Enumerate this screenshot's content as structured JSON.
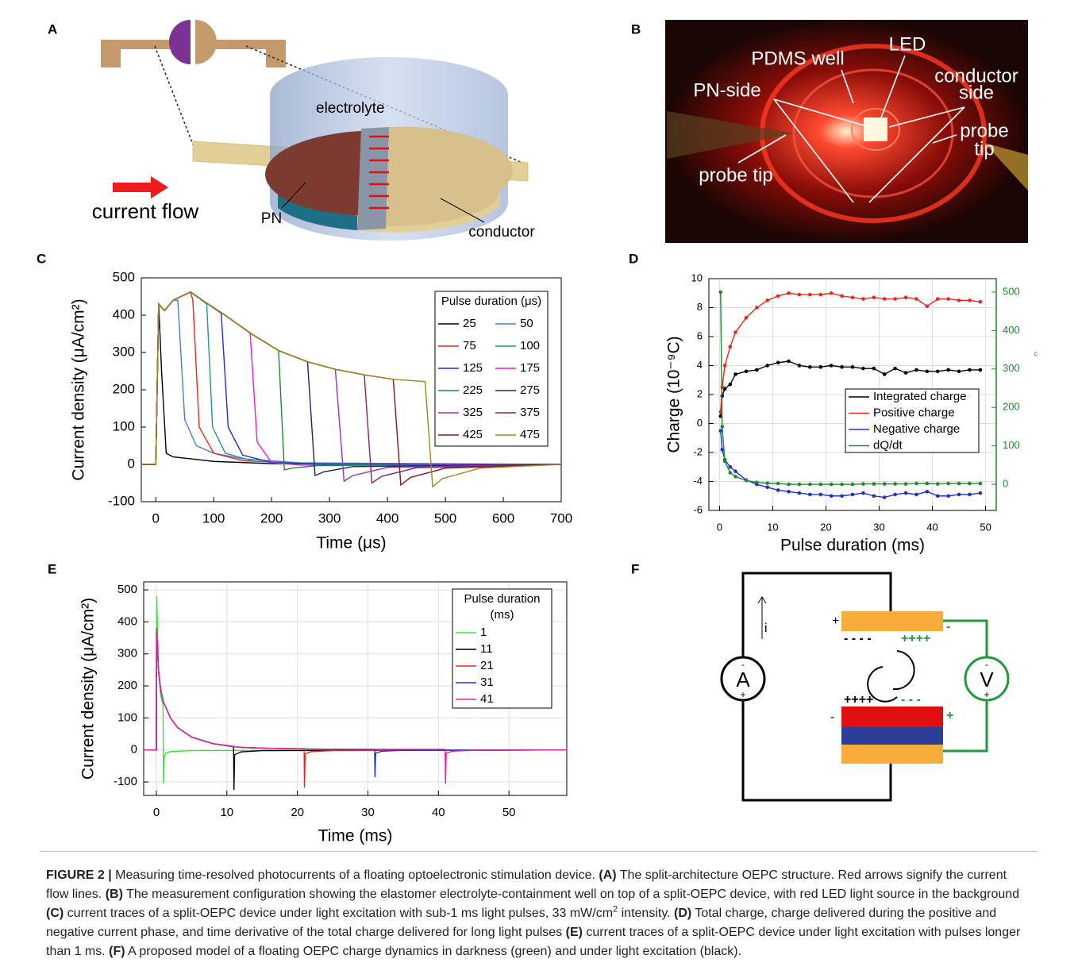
{
  "panel_a": {
    "label": "A",
    "electrolyte": "electrolyte",
    "current_flow": "current flow",
    "pn": "PN",
    "conductor": "conductor"
  },
  "panel_b": {
    "label": "B",
    "led": "LED",
    "pdms_well": "PDMS well",
    "pn_side": "PN-side",
    "conductor_side": [
      "conductor",
      "side"
    ],
    "probe_tip_right": [
      "probe",
      "tip"
    ],
    "probe_tip_left": "probe tip"
  },
  "chart_data": [
    {
      "type": "line",
      "panel": "C",
      "x_label": "Time (μs)",
      "y_label": "Current density (μA/cm²)",
      "xlim": [
        -25,
        700
      ],
      "xticks": [
        0,
        100,
        200,
        300,
        400,
        500,
        600,
        700
      ],
      "ylim": [
        -100,
        500
      ],
      "yticks": [
        -100,
        0,
        100,
        200,
        300,
        400,
        500
      ],
      "grid": false,
      "legend_title": [
        "Pulse duration (μs)"
      ],
      "legend_corner": "upper-right",
      "series": [
        {
          "name": "25",
          "color": "#000000",
          "x": [
            -25,
            0,
            5,
            10,
            18,
            30,
            60,
            100,
            200,
            700
          ],
          "values": [
            0,
            0,
            430,
            250,
            30,
            20,
            15,
            8,
            2,
            0
          ]
        },
        {
          "name": "50",
          "color": "#4b7bd1",
          "x": [
            -25,
            0,
            5,
            15,
            30,
            38,
            50,
            70,
            100,
            150,
            250,
            700
          ],
          "values": [
            0,
            0,
            430,
            412,
            440,
            440,
            120,
            50,
            30,
            15,
            4,
            0
          ]
        },
        {
          "name": "75",
          "color": "#e8281f",
          "x": [
            -25,
            0,
            5,
            15,
            30,
            60,
            64,
            75,
            100,
            150,
            250,
            700
          ],
          "values": [
            0,
            0,
            430,
            412,
            440,
            462,
            440,
            100,
            30,
            10,
            2,
            0
          ]
        },
        {
          "name": "100",
          "color": "#1a9a8a",
          "x": [
            -25,
            0,
            5,
            15,
            30,
            60,
            88,
            98,
            120,
            170,
            300,
            700
          ],
          "values": [
            0,
            0,
            430,
            412,
            440,
            462,
            430,
            100,
            30,
            8,
            1,
            0
          ]
        },
        {
          "name": "125",
          "color": "#1f2fd6",
          "x": [
            -25,
            0,
            5,
            15,
            30,
            60,
            90,
            113,
            125,
            150,
            200,
            300,
            700
          ],
          "values": [
            0,
            0,
            430,
            412,
            440,
            462,
            430,
            405,
            100,
            25,
            5,
            0,
            0
          ]
        },
        {
          "name": "175",
          "color": "#e31ee0",
          "x": [
            -25,
            0,
            5,
            15,
            30,
            60,
            90,
            115,
            163,
            175,
            200,
            250,
            700
          ],
          "values": [
            0,
            0,
            430,
            412,
            440,
            462,
            430,
            405,
            352,
            60,
            5,
            -2,
            0
          ]
        },
        {
          "name": "225",
          "color": "#1f8a2b",
          "x": [
            -25,
            0,
            5,
            15,
            30,
            60,
            90,
            115,
            165,
            212,
            222,
            235,
            280,
            700
          ],
          "values": [
            0,
            0,
            430,
            412,
            440,
            462,
            430,
            405,
            350,
            305,
            -15,
            -10,
            -3,
            0
          ]
        },
        {
          "name": "275",
          "color": "#1a2370",
          "x": [
            -25,
            0,
            5,
            15,
            30,
            60,
            90,
            115,
            165,
            212,
            262,
            275,
            290,
            340,
            700
          ],
          "values": [
            0,
            0,
            430,
            412,
            440,
            462,
            430,
            405,
            350,
            305,
            275,
            -30,
            -20,
            -6,
            0
          ]
        },
        {
          "name": "325",
          "color": "#9d2fc9",
          "x": [
            -25,
            0,
            5,
            15,
            30,
            60,
            90,
            115,
            165,
            212,
            262,
            310,
            325,
            340,
            400,
            700
          ],
          "values": [
            0,
            0,
            430,
            412,
            440,
            462,
            430,
            405,
            350,
            305,
            275,
            255,
            -45,
            -30,
            -8,
            0
          ]
        },
        {
          "name": "375",
          "color": "#8a1e6e",
          "x": [
            -25,
            0,
            5,
            15,
            30,
            60,
            90,
            115,
            165,
            212,
            262,
            310,
            360,
            373,
            390,
            450,
            700
          ],
          "values": [
            0,
            0,
            430,
            412,
            440,
            462,
            430,
            405,
            350,
            305,
            275,
            255,
            240,
            -50,
            -32,
            -9,
            0
          ]
        },
        {
          "name": "425",
          "color": "#8b1717",
          "x": [
            -25,
            0,
            5,
            15,
            30,
            60,
            90,
            115,
            165,
            212,
            262,
            310,
            360,
            410,
            423,
            440,
            500,
            700
          ],
          "values": [
            0,
            0,
            430,
            412,
            440,
            462,
            430,
            405,
            350,
            305,
            275,
            255,
            240,
            228,
            -55,
            -35,
            -10,
            0
          ]
        },
        {
          "name": "475",
          "color": "#9b8a15",
          "x": [
            -25,
            0,
            5,
            15,
            30,
            60,
            90,
            115,
            165,
            212,
            262,
            310,
            360,
            410,
            465,
            478,
            495,
            560,
            700
          ],
          "values": [
            0,
            0,
            430,
            412,
            440,
            462,
            430,
            405,
            350,
            305,
            275,
            255,
            240,
            228,
            222,
            -60,
            -38,
            -10,
            0
          ]
        }
      ]
    },
    {
      "type": "line",
      "panel": "D",
      "x_label": "Pulse duration (ms)",
      "y_label": "Charge (10⁻⁹C)",
      "y2_label": "c",
      "xlim": [
        -2,
        52
      ],
      "xticks": [
        0,
        10,
        20,
        30,
        40,
        50
      ],
      "ylim": [
        -6,
        10
      ],
      "yticks": [
        -6,
        -4,
        -2,
        0,
        2,
        4,
        6,
        8,
        10
      ],
      "y2lim": [
        -68,
        535
      ],
      "y2ticks": [
        0,
        100,
        200,
        300,
        400,
        500
      ],
      "y2_color": "#1f8a2b",
      "grid": true,
      "markers": true,
      "legend_corner": "lower-right",
      "series": [
        {
          "name": "Integrated charge",
          "color": "#000000",
          "x": [
            0.2,
            0.5,
            1,
            2,
            3,
            5,
            7,
            9,
            11,
            13,
            15,
            17,
            19,
            21,
            23,
            25,
            27,
            29,
            31,
            33,
            35,
            37,
            39,
            41,
            43,
            45,
            47,
            49
          ],
          "values": [
            0.5,
            1.9,
            2.4,
            2.7,
            3.4,
            3.6,
            3.7,
            4.0,
            4.2,
            4.3,
            4.0,
            3.9,
            3.9,
            4.0,
            3.9,
            3.9,
            3.8,
            3.8,
            3.4,
            3.8,
            3.5,
            3.7,
            3.6,
            3.6,
            3.7,
            3.6,
            3.7,
            3.7
          ]
        },
        {
          "name": "Positive charge",
          "color": "#e8281f",
          "x": [
            0.2,
            0.5,
            1,
            2,
            3,
            5,
            7,
            9,
            11,
            13,
            15,
            17,
            19,
            21,
            23,
            25,
            27,
            29,
            31,
            33,
            35,
            37,
            39,
            41,
            43,
            45,
            47,
            49
          ],
          "values": [
            0.8,
            2.5,
            4.0,
            5.3,
            6.3,
            7.3,
            8.0,
            8.5,
            8.8,
            9.0,
            8.9,
            8.9,
            8.9,
            9.0,
            8.8,
            8.7,
            8.6,
            8.7,
            8.6,
            8.6,
            8.7,
            8.6,
            8.1,
            8.6,
            8.6,
            8.5,
            8.5,
            8.4
          ]
        },
        {
          "name": "Negative charge",
          "color": "#1f2fd6",
          "x": [
            0.2,
            0.5,
            1,
            2,
            3,
            5,
            7,
            9,
            11,
            13,
            15,
            17,
            19,
            21,
            23,
            25,
            27,
            29,
            31,
            33,
            35,
            37,
            39,
            41,
            43,
            45,
            47,
            49
          ],
          "values": [
            -0.5,
            -1.8,
            -2.5,
            -3.0,
            -3.3,
            -3.9,
            -4.2,
            -4.4,
            -4.6,
            -4.7,
            -4.8,
            -4.9,
            -4.9,
            -5.0,
            -5.0,
            -4.9,
            -4.8,
            -5.0,
            -5.1,
            -4.9,
            -4.8,
            -4.9,
            -4.7,
            -5.0,
            -5.0,
            -4.9,
            -4.9,
            -4.8
          ]
        },
        {
          "name": "dQ/dt",
          "color": "#1f8a2b",
          "axis": "y2",
          "x": [
            0.2,
            0.5,
            1,
            2,
            3,
            5,
            7,
            9,
            11,
            13,
            15,
            17,
            19,
            21,
            23,
            25,
            27,
            29,
            31,
            33,
            35,
            37,
            39,
            41,
            43,
            45,
            47,
            49
          ],
          "values": [
            500,
            150,
            60,
            30,
            20,
            10,
            5,
            3,
            2,
            0,
            0,
            0,
            0,
            0,
            0,
            0,
            1,
            1,
            1,
            1,
            1,
            2,
            2,
            1,
            2,
            2,
            2,
            2
          ]
        }
      ]
    },
    {
      "type": "line",
      "panel": "E",
      "x_label": "Time (ms)",
      "y_label": "Current density (μA/cm²)",
      "xlim": [
        -1.8,
        58.2
      ],
      "xticks": [
        0,
        10,
        20,
        30,
        40,
        50
      ],
      "ylim": [
        -142,
        525
      ],
      "yticks": [
        -100,
        0,
        100,
        200,
        300,
        400,
        500
      ],
      "grid": true,
      "legend_title": [
        "Pulse duration",
        "(ms)"
      ],
      "legend_corner": "upper-right",
      "series": [
        {
          "name": "1",
          "color": "#33e633",
          "x": [
            -1.8,
            0,
            0.05,
            0.3,
            0.6,
            0.95,
            1,
            1.05,
            1.3,
            2,
            5,
            58.2
          ],
          "values": [
            0,
            0,
            480,
            250,
            170,
            140,
            -105,
            -30,
            -10,
            -5,
            -2,
            0
          ]
        },
        {
          "name": "11",
          "color": "#000000",
          "x": [
            -1.8,
            0,
            0.02,
            0.3,
            0.6,
            1,
            2,
            3,
            5,
            8,
            10.95,
            11,
            11.1,
            12,
            15,
            58.2
          ],
          "values": [
            0,
            0,
            380,
            250,
            190,
            150,
            100,
            70,
            40,
            20,
            10,
            -125,
            -15,
            -6,
            -2,
            0
          ]
        },
        {
          "name": "21",
          "color": "#e8281f",
          "x": [
            -1.8,
            0,
            0.02,
            0.3,
            0.6,
            1,
            2,
            3,
            5,
            8,
            12,
            16,
            20.95,
            21,
            21.1,
            22,
            25,
            58.2
          ],
          "values": [
            0,
            0,
            380,
            250,
            190,
            150,
            100,
            70,
            40,
            20,
            8,
            5,
            4,
            -118,
            -12,
            -5,
            -2,
            0
          ]
        },
        {
          "name": "31",
          "color": "#1f2fd6",
          "x": [
            -1.8,
            0,
            0.02,
            0.3,
            0.6,
            1,
            2,
            3,
            5,
            8,
            12,
            16,
            22,
            30.95,
            31,
            31.1,
            32,
            35,
            58.2
          ],
          "values": [
            0,
            0,
            380,
            250,
            190,
            150,
            100,
            70,
            40,
            20,
            8,
            5,
            3,
            2,
            -85,
            -10,
            -4,
            -1,
            0
          ]
        },
        {
          "name": "41",
          "color": "#ea1ea0",
          "x": [
            -1.8,
            0,
            0.02,
            0.3,
            0.6,
            1,
            2,
            3,
            5,
            8,
            12,
            16,
            22,
            30,
            40.95,
            41,
            41.1,
            42,
            45,
            58.2
          ],
          "values": [
            0,
            0,
            380,
            250,
            190,
            150,
            100,
            70,
            40,
            20,
            8,
            5,
            3,
            2,
            2,
            -105,
            -10,
            -4,
            -1,
            0
          ]
        }
      ]
    }
  ],
  "panel_f": {
    "label": "F",
    "current": "i",
    "ammeter": "A",
    "voltmeter": "V",
    "plus": "+",
    "minus": "-",
    "top_negative": "- - - -",
    "top_positive": "++++",
    "bottom_positive": "++++",
    "bottom_negative": "- - -"
  },
  "caption": {
    "segments": [
      {
        "text": "FIGURE 2 |",
        "bold": true
      },
      {
        "text": " Measuring time-resolved photocurrents of a floating optoelectronic stimulation device. "
      },
      {
        "text": "(A)",
        "bold": true
      },
      {
        "text": " The split-architecture OEPC structure. Red arrows signify the current flow lines. "
      },
      {
        "text": "(B)",
        "bold": true
      },
      {
        "text": " The measurement configuration showing the elastomer electrolyte-containment well on top of a split-OEPC device, with red LED light source in the background "
      },
      {
        "text": "(C)",
        "bold": true
      },
      {
        "text": " current traces of a split-OEPC device under light excitation with sub-1 ms light pulses, 33 mW/cm"
      },
      {
        "text": "2",
        "sup": true
      },
      {
        "text": " intensity. "
      },
      {
        "text": "(D)",
        "bold": true
      },
      {
        "text": " Total charge, charge delivered during the positive and negative current phase, and time derivative of the total charge delivered for long light pulses "
      },
      {
        "text": "(E)",
        "bold": true
      },
      {
        "text": " current traces of a split-OEPC device under light excitation with pulses longer than 1 ms. "
      },
      {
        "text": "(F)",
        "bold": true
      },
      {
        "text": " A proposed model of a floating OEPC charge dynamics in darkness (green) and under light excitation (black)."
      }
    ]
  }
}
